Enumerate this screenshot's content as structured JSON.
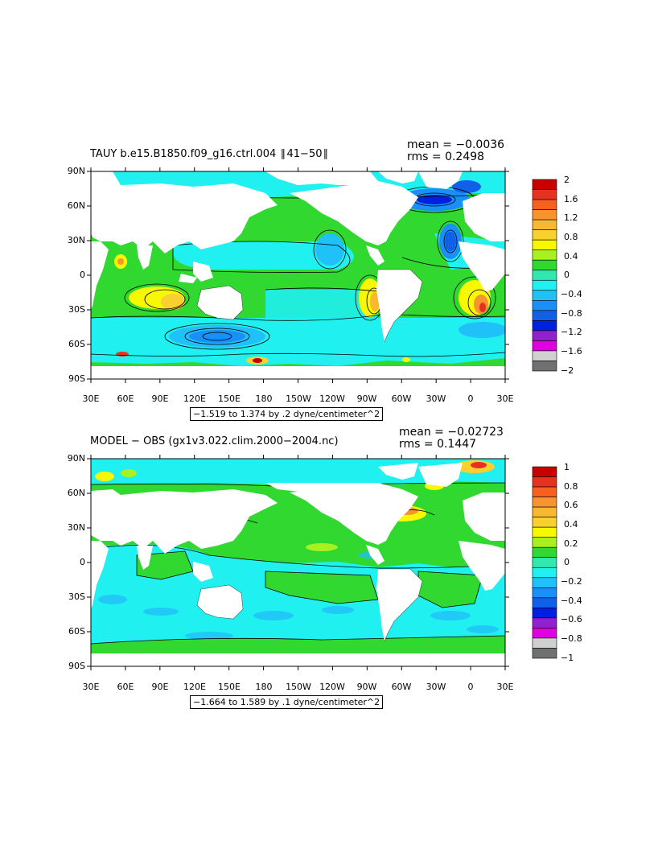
{
  "panels": [
    {
      "title": "TAUY b.e15.B1850.f09_g16.ctrl.004  ∥ 41−50 ∥",
      "mean": "mean = −0.0036",
      "rms": "rms = 0.2498",
      "range": "−1.519 to 1.374 by .2 dyne/centimeter^2",
      "lat_labels": [
        "90N",
        "60N",
        "30N",
        "0",
        "30S",
        "60S",
        "90S"
      ],
      "lon_labels": [
        "30E",
        "60E",
        "90E",
        "120E",
        "150E",
        "180",
        "150W",
        "120W",
        "90W",
        "60W",
        "30W",
        "0",
        "30E"
      ],
      "colorbar": {
        "labels": [
          "2",
          "1.6",
          "1.2",
          "0.8",
          "0.4",
          "0",
          "−0.4",
          "−0.8",
          "−1.2",
          "−1.6",
          "−2"
        ],
        "colors": [
          "#c80000",
          "#e83020",
          "#f86020",
          "#f89430",
          "#f8b830",
          "#f8d030",
          "#f8f800",
          "#a8f020",
          "#30d830",
          "#30e8b0",
          "#20f0f0",
          "#20c0f8",
          "#1890f8",
          "#1060e8",
          "#0020e0",
          "#9020d0",
          "#e000e0",
          "#d0d0d0",
          "#707070"
        ]
      }
    },
    {
      "title": "MODEL − OBS (gx1v3.022.clim.2000−2004.nc)",
      "mean": "mean = −0.02723",
      "rms": "rms = 0.1447",
      "range": "−1.664 to 1.589 by .1 dyne/centimeter^2",
      "lat_labels": [
        "90N",
        "60N",
        "30N",
        "0",
        "30S",
        "60S",
        "90S"
      ],
      "lon_labels": [
        "30E",
        "60E",
        "90E",
        "120E",
        "150E",
        "180",
        "150W",
        "120W",
        "90W",
        "60W",
        "30W",
        "0",
        "30E"
      ],
      "colorbar": {
        "labels": [
          "1",
          "0.8",
          "0.6",
          "0.4",
          "0.2",
          "0",
          "−0.2",
          "−0.4",
          "−0.6",
          "−0.8",
          "−1"
        ],
        "colors": [
          "#c80000",
          "#e83020",
          "#f86020",
          "#f89430",
          "#f8b830",
          "#f8d030",
          "#f8f800",
          "#a8f020",
          "#30d830",
          "#30e8b0",
          "#20f0f0",
          "#20c0f8",
          "#1890f8",
          "#1060e8",
          "#0020e0",
          "#9020d0",
          "#e000e0",
          "#d0d0d0",
          "#707070"
        ]
      }
    }
  ]
}
